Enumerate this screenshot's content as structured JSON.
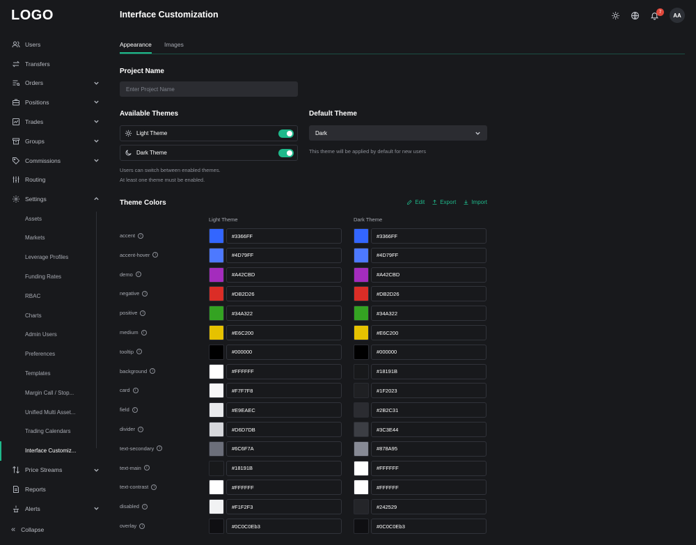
{
  "app": {
    "logo": "LOGO",
    "page_title": "Interface Customization"
  },
  "header": {
    "notification_count": "7",
    "avatar_initials": "AA"
  },
  "sidebar": {
    "items": [
      {
        "label": "Users",
        "icon": "users-icon",
        "chevron": false
      },
      {
        "label": "Transfers",
        "icon": "transfer-icon",
        "chevron": false
      },
      {
        "label": "Orders",
        "icon": "orders-icon",
        "chevron": "down"
      },
      {
        "label": "Positions",
        "icon": "briefcase-icon",
        "chevron": "down"
      },
      {
        "label": "Trades",
        "icon": "chart-icon",
        "chevron": "down"
      },
      {
        "label": "Groups",
        "icon": "archive-icon",
        "chevron": "down"
      },
      {
        "label": "Commissions",
        "icon": "tag-icon",
        "chevron": "down"
      },
      {
        "label": "Routing",
        "icon": "sliders-icon",
        "chevron": false
      },
      {
        "label": "Settings",
        "icon": "gear-icon",
        "chevron": "up"
      }
    ],
    "settings_sub": [
      "Assets",
      "Markets",
      "Leverage Profiles",
      "Funding Rates",
      "RBAC",
      "Charts",
      "Admin Users",
      "Preferences",
      "Templates",
      "Margin Call / Stop...",
      "Unified Multi Asset...",
      "Trading Calendars",
      "Interface Customiz..."
    ],
    "bottom_items": [
      {
        "label": "Price Streams",
        "icon": "arrows-updown-icon",
        "chevron": "down"
      },
      {
        "label": "Reports",
        "icon": "document-icon",
        "chevron": false
      },
      {
        "label": "Alerts",
        "icon": "alert-icon",
        "chevron": "down"
      }
    ],
    "collapse_label": "Collapse"
  },
  "tabs": [
    "Appearance",
    "Images"
  ],
  "project": {
    "title": "Project Name",
    "placeholder": "Enter Project Name"
  },
  "themes": {
    "title": "Available Themes",
    "light_label": "Light Theme",
    "dark_label": "Dark Theme",
    "help_line1": "Users can switch between enabled themes.",
    "help_line2": "At least one theme must be enabled.",
    "light_enabled": true,
    "dark_enabled": true
  },
  "default_theme": {
    "title": "Default Theme",
    "value": "Dark",
    "help": "This theme will be applied by default for new users"
  },
  "theme_colors": {
    "title": "Theme Colors",
    "edit_label": "Edit",
    "export_label": "Export",
    "import_label": "Import",
    "light_header": "Light Theme",
    "dark_header": "Dark Theme",
    "rows": [
      {
        "name": "accent",
        "light": "#3366FF",
        "dark": "#3366FF"
      },
      {
        "name": "accent-hover",
        "light": "#4D79FF",
        "dark": "#4D79FF"
      },
      {
        "name": "demo",
        "light": "#A42CBD",
        "dark": "#A42CBD"
      },
      {
        "name": "negative",
        "light": "#DB2D26",
        "dark": "#DB2D26"
      },
      {
        "name": "positive",
        "light": "#34A322",
        "dark": "#34A322"
      },
      {
        "name": "medium",
        "light": "#E6C200",
        "dark": "#E6C200"
      },
      {
        "name": "tooltip",
        "light": "#000000",
        "dark": "#000000"
      },
      {
        "name": "background",
        "light": "#FFFFFF",
        "dark": "#18191B"
      },
      {
        "name": "card",
        "light": "#F7F7F8",
        "dark": "#1F2023"
      },
      {
        "name": "field",
        "light": "#E9EAEC",
        "dark": "#2B2C31"
      },
      {
        "name": "divider",
        "light": "#D6D7DB",
        "dark": "#3C3E44"
      },
      {
        "name": "text-secondary",
        "light": "#6C6F7A",
        "dark": "#878A95"
      },
      {
        "name": "text-main",
        "light": "#18191B",
        "dark": "#FFFFFF"
      },
      {
        "name": "text-contrast",
        "light": "#FFFFFF",
        "dark": "#FFFFFF"
      },
      {
        "name": "disabled",
        "light": "#F1F2F3",
        "dark": "#242529"
      },
      {
        "name": "overlay",
        "light": "#0C0C0Eb3",
        "dark": "#0C0C0Eb3"
      }
    ]
  },
  "colors": {
    "accent_green": "#1fb98b",
    "background": "#18191c",
    "field": "#2b2c31",
    "badge_red": "#e0483b"
  }
}
